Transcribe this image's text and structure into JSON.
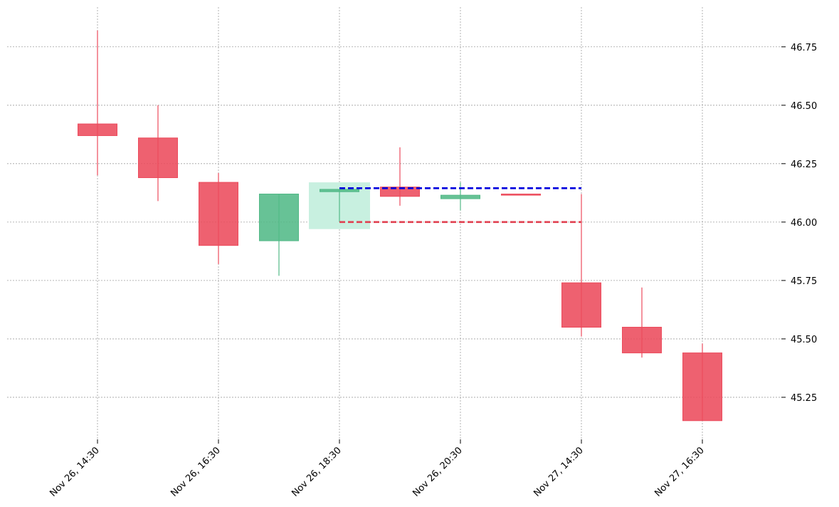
{
  "chart_data": {
    "type": "candlestick",
    "title": "",
    "xlabel": "",
    "ylabel": "",
    "ylim": [
      45.07,
      46.92
    ],
    "grid": true,
    "y_axis_side": "right",
    "y_ticks": [
      45.25,
      45.5,
      45.75,
      46.0,
      46.25,
      46.5,
      46.75
    ],
    "y_tick_labels": [
      "45.25",
      "45.50",
      "45.75",
      "46.00",
      "46.25",
      "46.50",
      "46.75"
    ],
    "x_ticks": [
      {
        "index": 0,
        "label": "Nov 26, 14:30"
      },
      {
        "index": 2,
        "label": "Nov 26, 16:30"
      },
      {
        "index": 4,
        "label": "Nov 26, 18:30"
      },
      {
        "index": 6,
        "label": "Nov 26, 20:30"
      },
      {
        "index": 8,
        "label": "Nov 27, 14:30"
      },
      {
        "index": 10,
        "label": "Nov 27, 16:30"
      }
    ],
    "candles": [
      {
        "open": 46.42,
        "high": 46.82,
        "low": 46.2,
        "close": 46.37
      },
      {
        "open": 46.36,
        "high": 46.5,
        "low": 46.09,
        "close": 46.19
      },
      {
        "open": 46.17,
        "high": 46.21,
        "low": 45.82,
        "close": 45.9
      },
      {
        "open": 45.92,
        "high": 46.12,
        "low": 45.77,
        "close": 46.12
      },
      {
        "open": 46.13,
        "high": 46.14,
        "low": 46.0,
        "close": 46.14
      },
      {
        "open": 46.15,
        "high": 46.32,
        "low": 46.07,
        "close": 46.11
      },
      {
        "open": 46.1,
        "high": 46.17,
        "low": 46.05,
        "close": 46.115
      },
      {
        "open": 46.12,
        "high": 46.12,
        "low": 46.12,
        "close": 46.115
      },
      {
        "open": 45.74,
        "high": 46.12,
        "low": 45.51,
        "close": 45.55
      },
      {
        "open": 45.55,
        "high": 45.72,
        "low": 45.42,
        "close": 45.44
      },
      {
        "open": 45.44,
        "high": 45.48,
        "low": 45.15,
        "close": 45.15
      }
    ],
    "highlight": {
      "index": 4,
      "low": 45.97,
      "high": 46.17,
      "color": "#c8f0e0"
    },
    "levels": [
      {
        "value": 46.145,
        "from_index": 4,
        "to_index": 8,
        "color": "#0000dd",
        "style": "dashed"
      },
      {
        "value": 46.0,
        "from_index": 4,
        "to_index": 8,
        "color": "#e04050",
        "style": "dashed"
      }
    ],
    "colors": {
      "up": "#52b987",
      "down": "#ec4b5c"
    }
  }
}
